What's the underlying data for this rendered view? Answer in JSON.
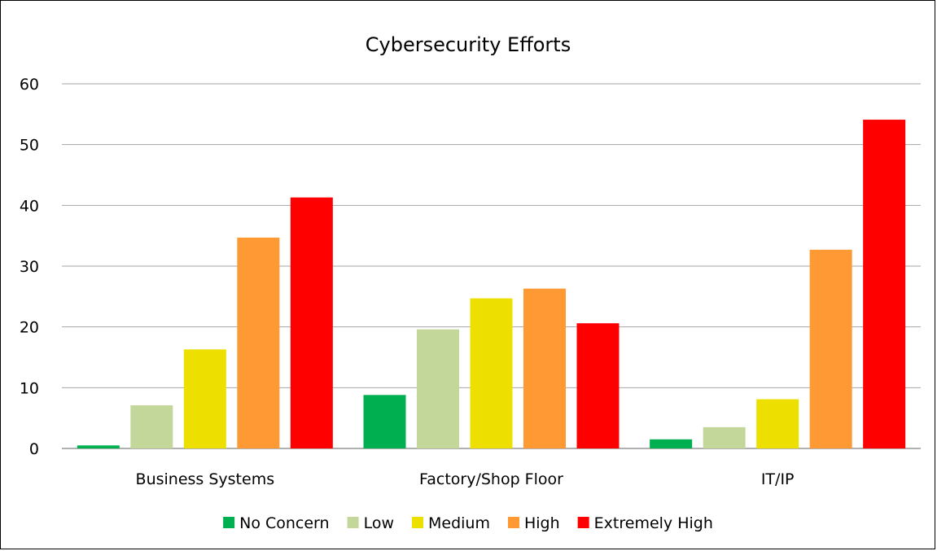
{
  "chart_data": {
    "type": "bar",
    "title": "Cybersecurity Efforts",
    "categories": [
      "Business Systems",
      "Factory/Shop Floor",
      "IT/IP"
    ],
    "series": [
      {
        "name": "No Concern",
        "color": "#00b050",
        "values": [
          0.5,
          8.8,
          1.5
        ]
      },
      {
        "name": "Low",
        "color": "#c4d79b",
        "values": [
          7.1,
          19.6,
          3.5
        ]
      },
      {
        "name": "Medium",
        "color": "#ede000",
        "values": [
          16.3,
          24.7,
          8.1
        ]
      },
      {
        "name": "High",
        "color": "#ff9933",
        "values": [
          34.7,
          26.3,
          32.7
        ]
      },
      {
        "name": "Extremely High",
        "color": "#ff0000",
        "values": [
          41.3,
          20.6,
          54.1
        ]
      }
    ],
    "ylim": [
      0,
      60
    ],
    "yticks": [
      "0",
      "10",
      "20",
      "30",
      "40",
      "50",
      "60"
    ],
    "grid": true,
    "legend_position": "bottom",
    "gridline_color": "#a6a6a6",
    "axis_color": "#808080"
  }
}
